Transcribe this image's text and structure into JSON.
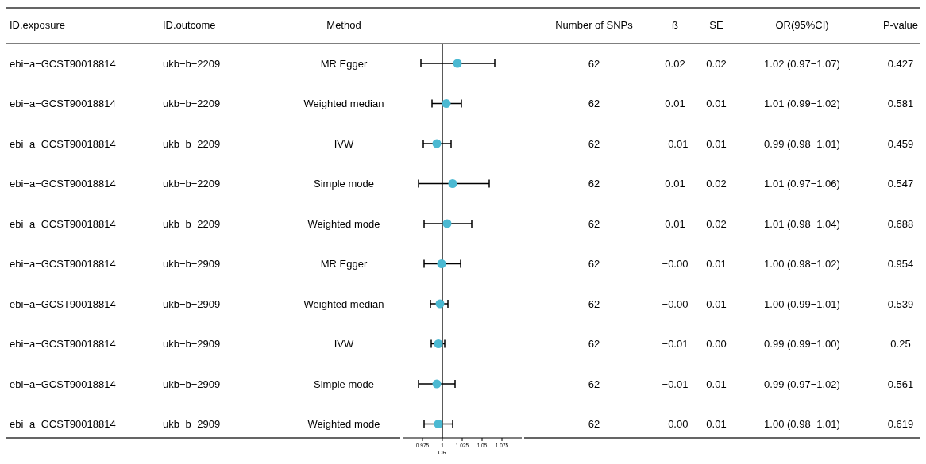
{
  "chart_data": {
    "type": "scatter",
    "orientation": "horizontal",
    "xlabel": "OR",
    "categories": [
      "MR Egger",
      "Weighted median",
      "IVW",
      "Simple mode",
      "Weighted mode",
      "MR Egger",
      "Weighted median",
      "IVW",
      "Simple mode",
      "Weighted mode"
    ],
    "values": [
      1.019,
      1.005,
      0.993,
      1.013,
      1.006,
      0.999,
      0.997,
      0.995,
      0.993,
      0.995
    ],
    "errors": [
      [
        0.973,
        1.066
      ],
      [
        0.987,
        1.024
      ],
      [
        0.976,
        1.011
      ],
      [
        0.97,
        1.059
      ],
      [
        0.977,
        1.037
      ],
      [
        0.977,
        1.023
      ],
      [
        0.985,
        1.007
      ],
      [
        0.986,
        1.003
      ],
      [
        0.97,
        1.016
      ],
      [
        0.977,
        1.013
      ]
    ],
    "value_labels": [
      "1.02 (0.97−1.07)",
      "1.01 (0.99−1.02)",
      "0.99 (0.98−1.01)",
      "1.01 (0.97−1.06)",
      "1.01 (0.98−1.04)",
      "1.00 (0.98−1.02)",
      "1.00 (0.99−1.01)",
      "0.99 (0.99−1.00)",
      "0.99 (0.97−1.02)",
      "1.00 (0.98−1.01)"
    ],
    "color": "#4bb9d2",
    "marker": "circle",
    "grid": false,
    "xlim": [
      0.95,
      1.1
    ],
    "xticks": [
      0.975,
      1,
      1.025,
      1.05,
      1.075
    ],
    "ref_lines": [
      {
        "axis": "x",
        "value": 1
      }
    ],
    "annotations": [
      "ID.exposure",
      "ID.outcome",
      "Method",
      "Number of SNPs",
      "ß",
      "SE",
      "OR(95%CI)",
      "P-value",
      "ebi−a−GCST90018814",
      "ukb−b−2209",
      "62",
      "0.02",
      "0.02",
      "0.427",
      "ebi−a−GCST90018814",
      "ukb−b−2209",
      "62",
      "0.01",
      "0.01",
      "0.581",
      "ebi−a−GCST90018814",
      "ukb−b−2209",
      "62",
      "−0.01",
      "0.01",
      "0.459",
      "ebi−a−GCST90018814",
      "ukb−b−2209",
      "62",
      "0.01",
      "0.02",
      "0.547",
      "ebi−a−GCST90018814",
      "ukb−b−2209",
      "62",
      "0.01",
      "0.02",
      "0.688",
      "ebi−a−GCST90018814",
      "ukb−b−2909",
      "62",
      "−0.00",
      "0.01",
      "0.954",
      "ebi−a−GCST90018814",
      "ukb−b−2909",
      "62",
      "−0.00",
      "0.01",
      "0.539",
      "ebi−a−GCST90018814",
      "ukb−b−2909",
      "62",
      "−0.01",
      "0.00",
      "0.25",
      "ebi−a−GCST90018814",
      "ukb−b−2909",
      "62",
      "−0.01",
      "0.01",
      "0.561",
      "ebi−a−GCST90018814",
      "ukb−b−2909",
      "62",
      "−0.00",
      "0.01",
      "0.619"
    ]
  }
}
